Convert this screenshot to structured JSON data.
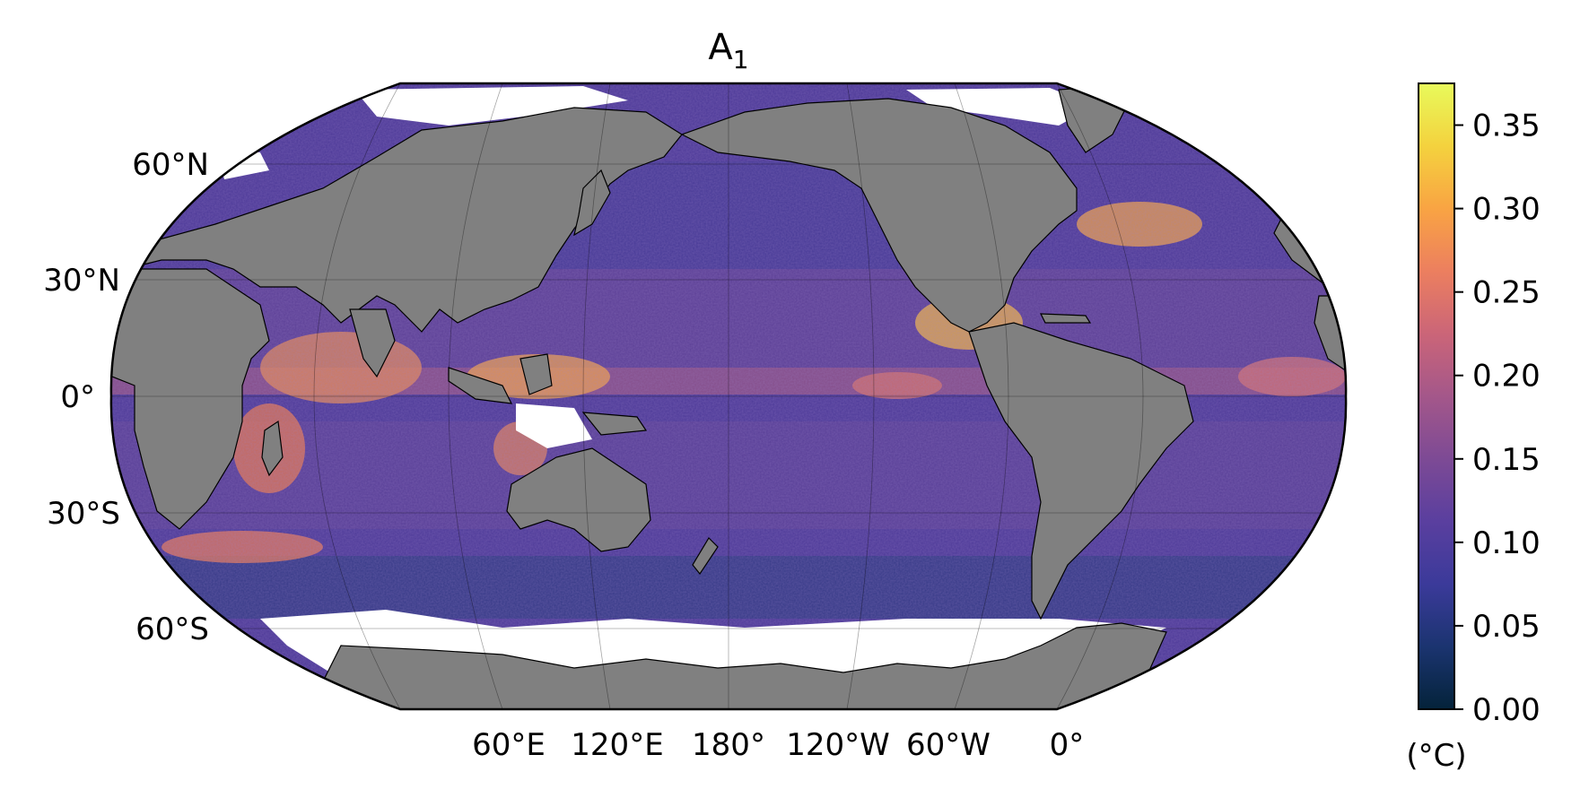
{
  "title": {
    "main": "A",
    "subscript": "1"
  },
  "map": {
    "projection": "Robinson",
    "central_longitude": "180°",
    "land_color": "#808080",
    "missing_color": "#ffffff",
    "lat_labels": [
      "60°N",
      "30°N",
      "0°",
      "30°S",
      "60°S"
    ],
    "lon_labels": [
      "60°E",
      "120°E",
      "180°",
      "120°W",
      "60°W",
      "0°"
    ]
  },
  "colorbar": {
    "unit": "(°C)",
    "min": 0.0,
    "max": 0.375,
    "ticks": [
      "0.00",
      "0.05",
      "0.10",
      "0.15",
      "0.20",
      "0.25",
      "0.30",
      "0.35"
    ],
    "tick_values": [
      0.0,
      0.05,
      0.1,
      0.15,
      0.2,
      0.25,
      0.3,
      0.35
    ],
    "colormap": "thermal",
    "stops": [
      "#04233a",
      "#1b3470",
      "#3b3a9a",
      "#5a3f9f",
      "#7d4a95",
      "#a4578a",
      "#cb6578",
      "#ec7f5f",
      "#f9a443",
      "#f4d23e",
      "#e8fa5b"
    ]
  }
}
